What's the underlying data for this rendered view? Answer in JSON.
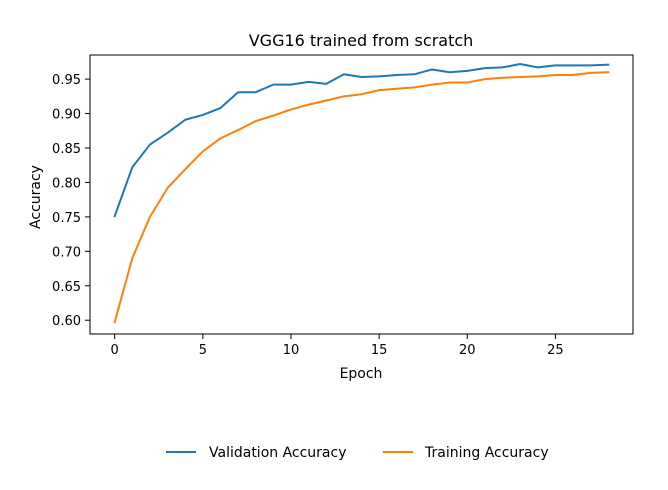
{
  "chart_data": {
    "type": "line",
    "title": "VGG16 trained from scratch",
    "xlabel": "Epoch",
    "ylabel": "Accuracy",
    "xlim": [
      -1.4,
      29.4
    ],
    "ylim": [
      0.58,
      0.985
    ],
    "xticks": [
      0,
      5,
      10,
      15,
      20,
      25
    ],
    "yticks": [
      0.6,
      0.65,
      0.7,
      0.75,
      0.8,
      0.85,
      0.9,
      0.95
    ],
    "ytick_labels": [
      "0.60",
      "0.65",
      "0.70",
      "0.75",
      "0.80",
      "0.85",
      "0.90",
      "0.95"
    ],
    "grid": false,
    "legend_position": "bottom-center",
    "x": [
      0,
      1,
      2,
      3,
      4,
      5,
      6,
      7,
      8,
      9,
      10,
      11,
      12,
      13,
      14,
      15,
      16,
      17,
      18,
      19,
      20,
      21,
      22,
      23,
      24,
      25,
      26,
      27,
      28
    ],
    "series": [
      {
        "name": "Validation Accuracy",
        "color": "#1f77b4",
        "values": [
          0.751,
          0.822,
          0.855,
          0.872,
          0.891,
          0.898,
          0.908,
          0.931,
          0.931,
          0.942,
          0.942,
          0.946,
          0.943,
          0.957,
          0.953,
          0.954,
          0.956,
          0.957,
          0.964,
          0.96,
          0.962,
          0.966,
          0.967,
          0.972,
          0.967,
          0.97,
          0.97,
          0.97,
          0.971
        ]
      },
      {
        "name": "Training Accuracy",
        "color": "#ff7f0e",
        "values": [
          0.597,
          0.69,
          0.75,
          0.792,
          0.819,
          0.845,
          0.864,
          0.876,
          0.889,
          0.897,
          0.906,
          0.913,
          0.919,
          0.925,
          0.928,
          0.934,
          0.936,
          0.938,
          0.942,
          0.945,
          0.945,
          0.95,
          0.952,
          0.953,
          0.954,
          0.956,
          0.956,
          0.959,
          0.96
        ]
      }
    ]
  }
}
